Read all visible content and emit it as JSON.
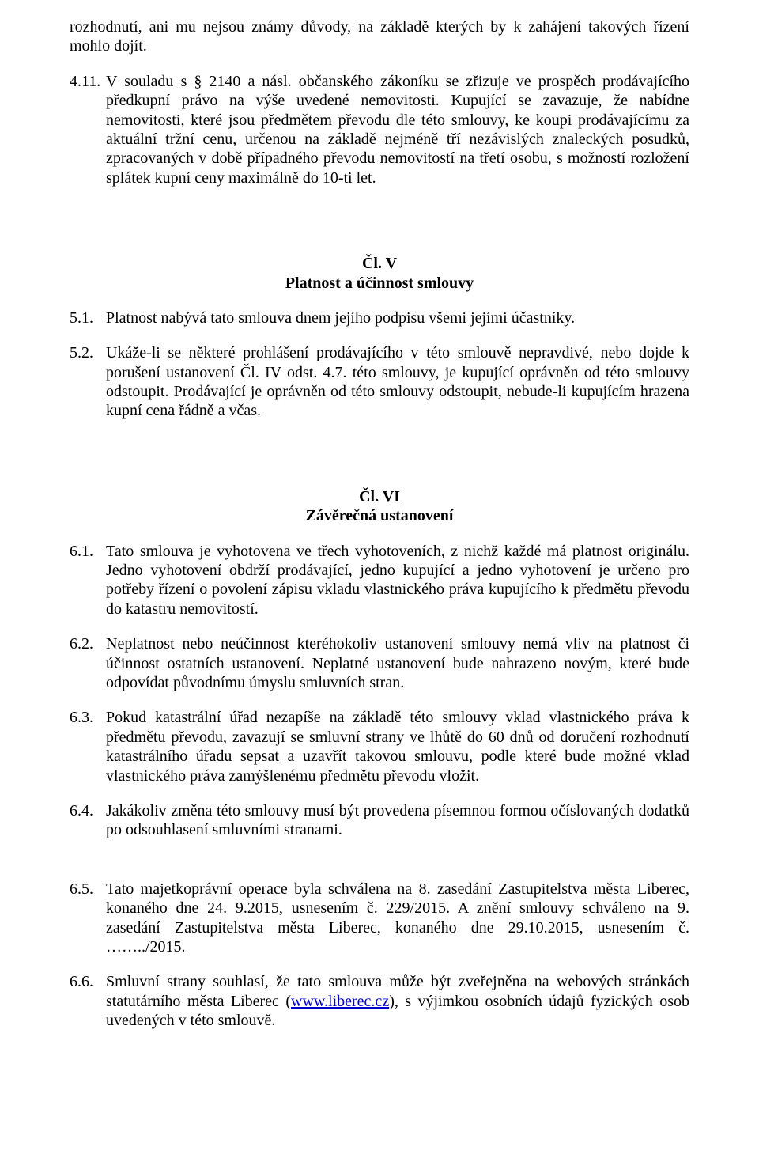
{
  "font": {
    "family": "Times New Roman",
    "size_pt": 15,
    "color": "#000000"
  },
  "background_color": "#ffffff",
  "p_intro_1": "rozhodnutí, ani mu nejsou známy důvody, na základě kterých by k zahájení takových řízení mohlo dojít.",
  "p_4_11_num": "4.11.",
  "p_4_11_txt": "V souladu s § 2140 a násl.  občanského zákoníku se zřizuje ve prospěch prodávajícího předkupní právo na výše uvedené nemovitosti. Kupující se zavazuje, že nabídne nemovitosti, které jsou předmětem převodu dle této smlouvy, ke koupi prodávajícímu za aktuální tržní cenu, určenou na základě nejméně tří nezávislých znaleckých posudků, zpracovaných  v době  případného  převodu  nemovitostí  na  třetí  osobu,  s možností rozložení splátek kupní ceny maximálně do 10-ti let.",
  "sec5_heading1": "Čl. V",
  "sec5_heading2": "Platnost a účinnost smlouvy",
  "p_5_1_num": "5.1.",
  "p_5_1_txt": "Platnost nabývá tato smlouva dnem jejího podpisu všemi jejími účastníky.",
  "p_5_2_num": "5.2.",
  "p_5_2_txt": "Ukáže-li  se  některé  prohlášení  prodávajícího  v této  smlouvě  nepravdivé,  nebo  dojde k porušení  ustanovení  Čl.  IV odst.  4.7.  této  smlouvy,  je  kupující  oprávněn  od  této smlouvy  odstoupit.  Prodávající  je  oprávněn  od  této  smlouvy  odstoupit,  nebude-li kupujícím hrazena kupní cena řádně a včas.",
  "sec6_heading1": "Čl. VI",
  "sec6_heading2": "Závěrečná ustanovení",
  "p_6_1_num": "6.1.",
  "p_6_1_txt": "Tato smlouva je vyhotovena ve třech vyhotoveních, z nichž každé má platnost originálu. Jedno vyhotovení obdrží prodávající, jedno kupující a jedno vyhotovení je určeno pro potřeby  řízení  o  povolení  zápisu  vkladu  vlastnického  práva  kupujícího  k předmětu převodu do katastru nemovitostí.",
  "p_6_2_num": "6.2.",
  "p_6_2_txt": "Neplatnost nebo neúčinnost kteréhokoliv ustanovení smlouvy nemá vliv na platnost či účinnost ostatních ustanovení. Neplatné ustanovení bude nahrazeno novým, které bude odpovídat původnímu úmyslu smluvních stran.",
  "p_6_3_num": "6.3.",
  "p_6_3_txt": "Pokud  katastrální  úřad  nezapíše  na  základě  této  smlouvy  vklad  vlastnického  práva k předmětu  převodu,  zavazují  se  smluvní  strany  ve  lhůtě  do  60  dnů  od  doručení rozhodnutí  katastrálního  úřadu  sepsat  a  uzavřít  takovou  smlouvu,  podle  které  bude možné vklad vlastnického práva zamýšlenému předmětu převodu vložit.",
  "p_6_4_num": "6.4.",
  "p_6_4_txt": "Jakákoliv  změna  této  smlouvy  musí  být  provedena  písemnou  formou  očíslovaných dodatků po odsouhlasení smluvními stranami.",
  "p_6_5_num": "6.5.",
  "p_6_5_txt": "Tato majetkoprávní operace byla schválena na 8. zasedání Zastupitelstva města Liberec, konaného  dne  24. 9.2015,  usnesením č.  229/2015.  A  znění  smlouvy  schváleno  na  9. zasedání   Zastupitelstva   města   Liberec,   konaného   dne   29.10.2015,   usnesením   č. ……../2015.",
  "p_6_6_num": "6.6.",
  "p_6_6_before": "Smluvní strany souhlasí, že tato smlouva může být zveřejněna na webových stránkách statutárního města Liberec (",
  "p_6_6_link": "www.liberec.cz",
  "p_6_6_after": "), s výjimkou osobních údajů fyzických osob uvedených v této smlouvě."
}
